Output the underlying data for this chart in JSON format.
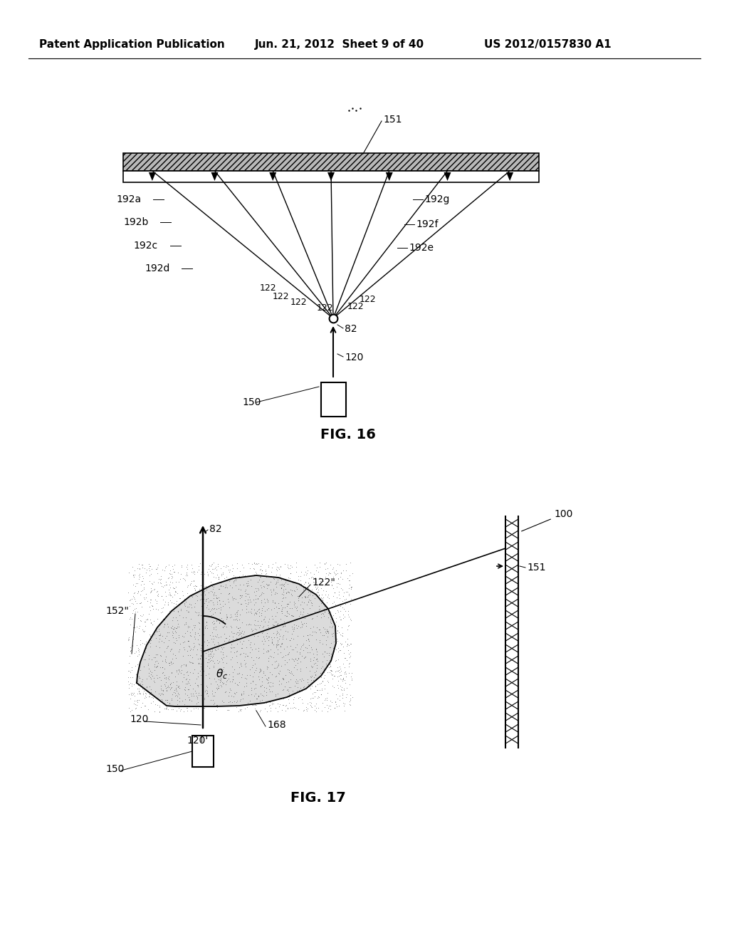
{
  "bg_color": "#ffffff",
  "header_left": "Patent Application Publication",
  "header_mid": "Jun. 21, 2012  Sheet 9 of 40",
  "header_right": "US 2012/0157830 A1",
  "fig16_label": "FIG. 16",
  "fig17_label": "FIG. 17"
}
